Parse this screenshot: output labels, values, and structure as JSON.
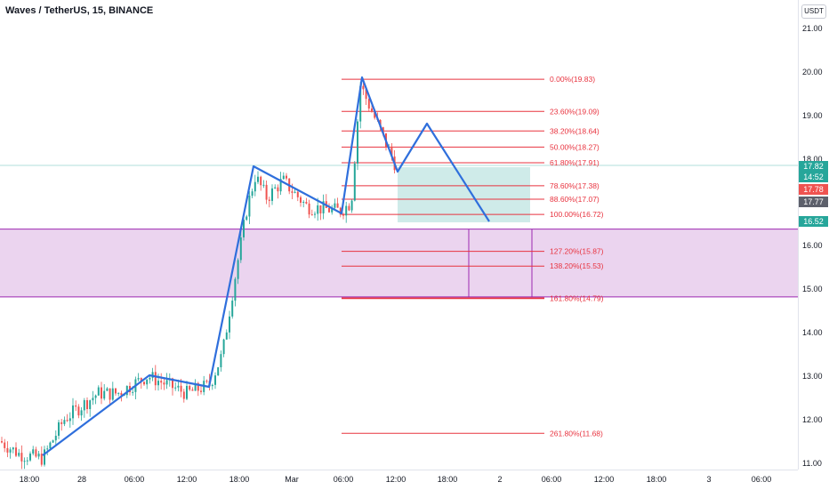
{
  "header": {
    "title": "Waves / TetherUS, 15, BINANCE"
  },
  "price_axis": {
    "currency": "USDT",
    "ticks": [
      "21.00",
      "20.00",
      "19.00",
      "18.00",
      "17.00",
      "16.00",
      "15.00",
      "14.00",
      "13.00",
      "12.00",
      "11.00"
    ],
    "badges": [
      {
        "label": "17.82",
        "color": "#26a69a"
      },
      {
        "label": "14:52",
        "color": "#26a69a"
      },
      {
        "label": "17.78",
        "color": "#ef5350"
      },
      {
        "label": "17.77",
        "color": "#5d606b"
      },
      {
        "label": "16.52",
        "color": "#26a69a"
      }
    ]
  },
  "time_axis": {
    "ticks": [
      "18:00",
      "28",
      "06:00",
      "12:00",
      "18:00",
      "Mar",
      "06:00",
      "12:00",
      "18:00",
      "2",
      "06:00",
      "12:00",
      "18:00",
      "3",
      "06:00"
    ]
  },
  "fib_levels": [
    {
      "label": "0.00%(19.83)",
      "price": 19.83
    },
    {
      "label": "23.60%(19.09)",
      "price": 19.09
    },
    {
      "label": "38.20%(18.64)",
      "price": 18.64
    },
    {
      "label": "50.00%(18.27)",
      "price": 18.27
    },
    {
      "label": "61.80%(17.91)",
      "price": 17.91
    },
    {
      "label": "78.60%(17.38)",
      "price": 17.38
    },
    {
      "label": "88.60%(17.07)",
      "price": 17.07
    },
    {
      "label": "100.00%(16.72)",
      "price": 16.72
    },
    {
      "label": "127.20%(15.87)",
      "price": 15.87
    },
    {
      "label": "138.20%(15.53)",
      "price": 15.53
    },
    {
      "label": "161.80%(14.79)",
      "price": 14.79
    },
    {
      "label": "261.80%(11.68)",
      "price": 11.68
    }
  ],
  "zone": {
    "top": 16.38,
    "bottom": 14.82
  },
  "colors": {
    "up": "#26a69a",
    "down": "#ef5350",
    "pattern": "#2f6fdc",
    "fib": "#e8333f",
    "zone": "#9c27b0"
  }
}
